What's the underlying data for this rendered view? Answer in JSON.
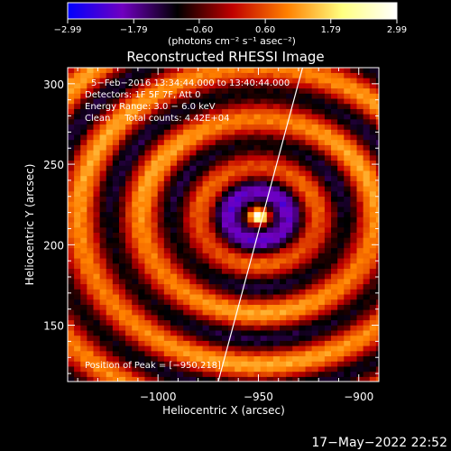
{
  "chart_data": {
    "type": "heatmap",
    "title": "Reconstructed RHESSI Image",
    "xlabel": "Heliocentric X (arcsec)",
    "ylabel": "Heliocentric Y (arcsec)",
    "xlim": [
      -1045,
      -890
    ],
    "ylim": [
      115,
      310
    ],
    "x_ticks": [
      -1000,
      -950,
      -900
    ],
    "x_tick_labels": [
      "−1000",
      "−950",
      "−900"
    ],
    "y_ticks": [
      150,
      200,
      250,
      300
    ],
    "y_tick_labels": [
      "150",
      "200",
      "250",
      "300"
    ],
    "colorbar": {
      "range": [
        -2.99,
        2.99
      ],
      "ticks": [
        -2.99,
        -1.79,
        -0.6,
        0.6,
        1.79,
        2.99
      ],
      "tick_labels": [
        "−2.99",
        "−1.79",
        "−0.60",
        "0.60",
        "1.79",
        "2.99"
      ],
      "unit_label": "(photons cm⁻² s⁻¹ asec⁻²)",
      "colors": [
        "#0000ff",
        "#7000c0",
        "#000000",
        "#c00000",
        "#ff8000",
        "#ffff80",
        "#ffffff"
      ]
    },
    "annotations": [
      "5−Feb−2016 13:34:44.000 to 13:40:44.000",
      "Detectors: 1F 5F 7F, Att 0",
      "Energy Range: 3.0 − 6.0 keV",
      "Clean     Total counts: 4.42E+04",
      "Position of Peak = [−950,218]"
    ],
    "peak": {
      "x": -950,
      "y": 218
    },
    "limb_line": [
      {
        "x": -970,
        "y": 115
      },
      {
        "x": -928,
        "y": 310
      }
    ],
    "footer": "17−May−2022 22:52"
  }
}
